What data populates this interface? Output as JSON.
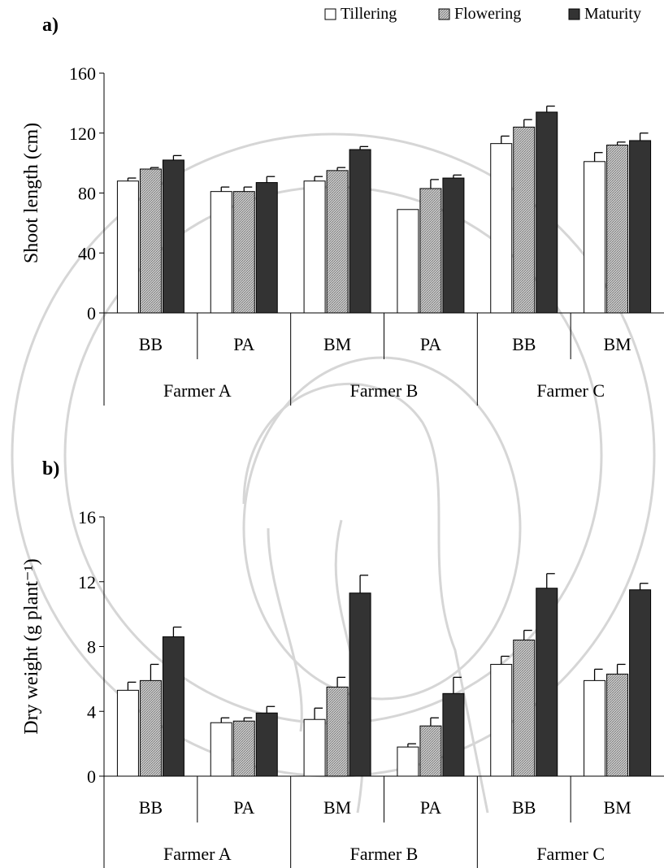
{
  "colors": {
    "tillering": "#ffffff",
    "flowering": "#b8b8b8",
    "maturity": "#333333",
    "axis": "#000000",
    "watermark": "#d6d6d6"
  },
  "legend": {
    "placement": "top-right",
    "items": [
      {
        "label": "Tillering",
        "key": "tillering"
      },
      {
        "label": "Flowering",
        "key": "flowering"
      },
      {
        "label": "Maturity",
        "key": "maturity"
      }
    ]
  },
  "chart_data": [
    {
      "type": "bar",
      "panel_label": "a)",
      "ylabel": "Shoot length (cm)",
      "ylim": [
        0,
        160
      ],
      "yticks": [
        0,
        40,
        80,
        120,
        160
      ],
      "categories": [
        "BB",
        "PA",
        "BM",
        "PA",
        "BB",
        "BM"
      ],
      "groups": [
        {
          "label": "Farmer A",
          "span": 2
        },
        {
          "label": "Farmer B",
          "span": 2
        },
        {
          "label": "Farmer C",
          "span": 2
        }
      ],
      "series": [
        {
          "name": "Tillering",
          "key": "tillering",
          "values": [
            88,
            81,
            88,
            69,
            113,
            101
          ],
          "errors": [
            2,
            3,
            3,
            0,
            5,
            6
          ]
        },
        {
          "name": "Flowering",
          "key": "flowering",
          "values": [
            96,
            81,
            95,
            83,
            124,
            112
          ],
          "errors": [
            1,
            3,
            2,
            6,
            5,
            2
          ]
        },
        {
          "name": "Maturity",
          "key": "maturity",
          "values": [
            102,
            87,
            109,
            90,
            134,
            115
          ],
          "errors": [
            3,
            4,
            2,
            2,
            4,
            5
          ]
        }
      ]
    },
    {
      "type": "bar",
      "panel_label": "b)",
      "ylabel": "Dry weight (g plant⁻¹)",
      "ylim": [
        0,
        16
      ],
      "yticks": [
        0,
        4,
        8,
        12,
        16
      ],
      "categories": [
        "BB",
        "PA",
        "BM",
        "PA",
        "BB",
        "BM"
      ],
      "groups": [
        {
          "label": "Farmer A",
          "span": 2
        },
        {
          "label": "Farmer B",
          "span": 2
        },
        {
          "label": "Farmer C",
          "span": 2
        }
      ],
      "series": [
        {
          "name": "Tillering",
          "key": "tillering",
          "values": [
            5.3,
            3.3,
            3.5,
            1.8,
            6.9,
            5.9
          ],
          "errors": [
            0.5,
            0.3,
            0.7,
            0.2,
            0.5,
            0.7
          ]
        },
        {
          "name": "Flowering",
          "key": "flowering",
          "values": [
            5.9,
            3.4,
            5.5,
            3.1,
            8.4,
            6.3
          ],
          "errors": [
            1.0,
            0.2,
            0.6,
            0.5,
            0.6,
            0.6
          ]
        },
        {
          "name": "Maturity",
          "key": "maturity",
          "values": [
            8.6,
            3.9,
            11.3,
            5.1,
            11.6,
            11.5
          ],
          "errors": [
            0.6,
            0.4,
            1.1,
            1.0,
            0.9,
            0.4
          ]
        }
      ]
    }
  ]
}
